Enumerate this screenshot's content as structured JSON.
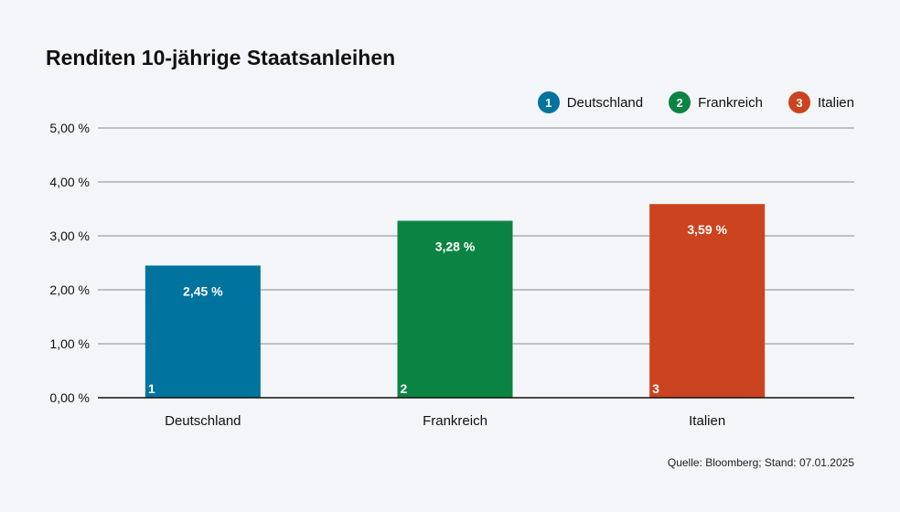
{
  "chart_data": {
    "type": "bar",
    "title": "Renditen 10-jährige Staatsanleihen",
    "categories": [
      "Deutschland",
      "Frankreich",
      "Italien"
    ],
    "values": [
      2.45,
      3.28,
      3.59
    ],
    "value_labels": [
      "2,45 %",
      "3,28 %",
      "3,59 %"
    ],
    "bar_numbers": [
      "1",
      "2",
      "3"
    ],
    "colors": [
      "#00739e",
      "#0b8443",
      "#cc4320"
    ],
    "ylim": [
      0,
      5
    ],
    "yticks": [
      0,
      1,
      2,
      3,
      4,
      5
    ],
    "ytick_labels": [
      "0,00 %",
      "1,00 %",
      "2,00 %",
      "3,00 %",
      "4,00 %",
      "5,00 %"
    ],
    "grid": true,
    "legend_position": "top-right",
    "legend": [
      {
        "number": "1",
        "label": "Deutschland",
        "color": "#00739e"
      },
      {
        "number": "2",
        "label": "Frankreich",
        "color": "#0b8443"
      },
      {
        "number": "3",
        "label": "Italien",
        "color": "#cc4320"
      }
    ]
  },
  "source": "Quelle: Bloomberg; Stand: 07.01.2025"
}
